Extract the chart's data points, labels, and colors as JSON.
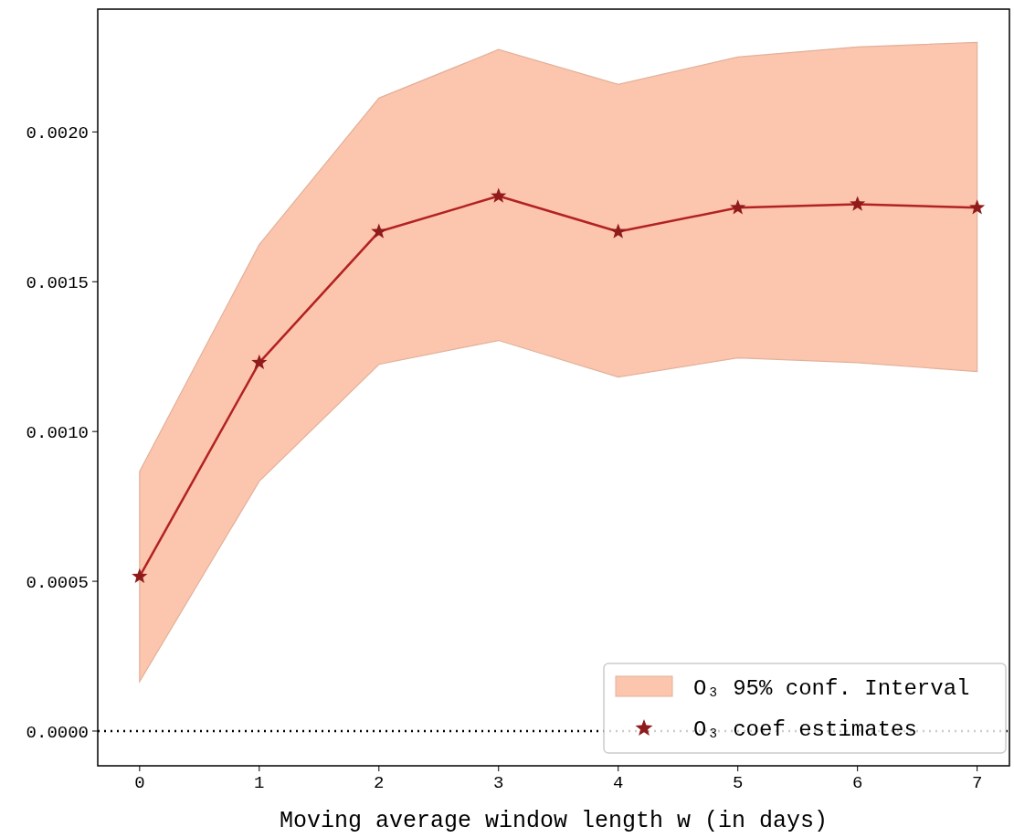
{
  "chart_data": {
    "type": "line",
    "xlabel": "Moving average window length w (in days)",
    "x": [
      0,
      1,
      2,
      3,
      4,
      5,
      6,
      7
    ],
    "series": [
      {
        "type": "area",
        "name": "O₃ 95% conf. Interval",
        "color": "#fcc5ad",
        "marker": "none",
        "values": [
          null,
          null,
          null,
          null,
          null,
          null,
          null,
          null
        ],
        "lower": [
          0.000165,
          0.000834,
          0.001224,
          0.001304,
          0.001182,
          0.001246,
          0.00123,
          0.0012
        ],
        "upper": [
          0.000867,
          0.001624,
          0.002113,
          0.002275,
          0.002159,
          0.00225,
          0.002284,
          0.002299
        ]
      },
      {
        "name": "O₃ coef estimates",
        "color": "#b22222",
        "marker": "star",
        "values": [
          0.000516,
          0.00123,
          0.001667,
          0.001786,
          0.001667,
          0.001747,
          0.001759,
          0.001747
        ]
      }
    ],
    "line_style": "solid",
    "xlim": [
      -0.35,
      7.27
    ],
    "xticks": [
      0,
      1,
      2,
      3,
      4,
      5,
      6,
      7
    ],
    "ylim": [
      -0.000116,
      0.00241
    ],
    "yticks": [
      {
        "value": 0,
        "label": "0.0000"
      },
      {
        "value": 0.0005,
        "label": "0.0005"
      },
      {
        "value": 0.001,
        "label": "0.0010"
      },
      {
        "value": 0.0015,
        "label": "0.0015"
      },
      {
        "value": 0.002,
        "label": "0.0020"
      }
    ],
    "ref_lines": [
      {
        "axis": "y",
        "value": 0,
        "color": "#000000",
        "line_style": "dotted"
      }
    ],
    "grid": false,
    "legend": "bottom right"
  }
}
